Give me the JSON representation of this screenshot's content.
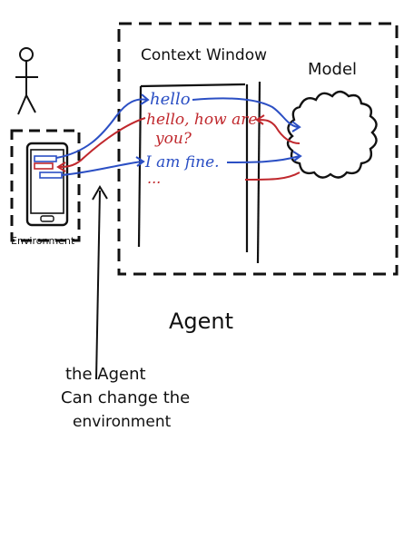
{
  "labels": {
    "context_window": "Context Window",
    "model": "Model",
    "environment": "Environment",
    "agent": "Agent",
    "annotation_line1": "the Agent",
    "annotation_line2": "Can change the",
    "annotation_line3": "environment"
  },
  "messages": [
    {
      "text": "hello",
      "role": "user"
    },
    {
      "text": "hello, how are",
      "role": "model"
    },
    {
      "text": "you?",
      "role": "model"
    },
    {
      "text": "I am fine.",
      "role": "user"
    },
    {
      "text": "...",
      "role": "model"
    }
  ],
  "colors": {
    "ink": "#111111",
    "user": "#2b4fc4",
    "model": "#c0282d"
  }
}
